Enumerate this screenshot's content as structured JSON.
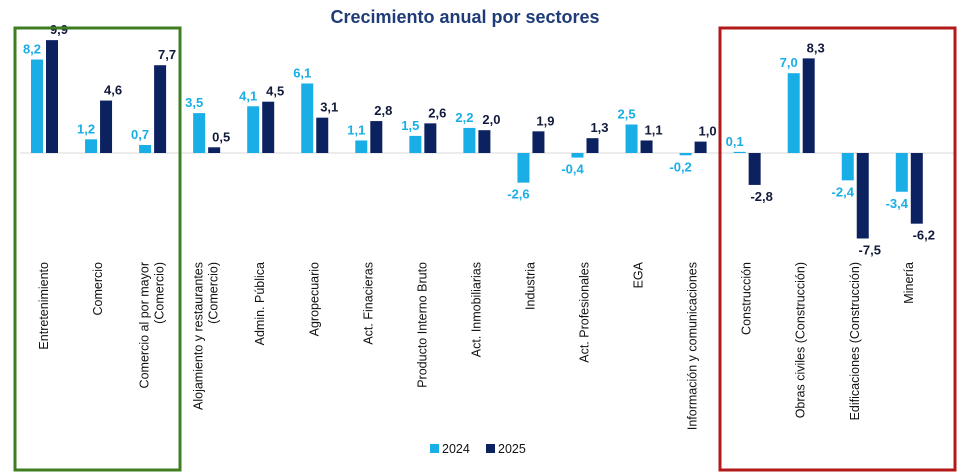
{
  "chart_data": {
    "type": "bar",
    "title": "Crecimiento anual por sectores",
    "categories": [
      [
        "Entretenimiento"
      ],
      [
        "Comercio"
      ],
      [
        "Comercio  al por mayor",
        "(Comercio)"
      ],
      [
        "Alojamiento y restaurantes",
        "(Comercio)"
      ],
      [
        "Admin. Pública"
      ],
      [
        "Agropecuario"
      ],
      [
        "Act. Finacieras"
      ],
      [
        "Producto Interno Bruto"
      ],
      [
        "Act. Inmobiliarias"
      ],
      [
        "Industria"
      ],
      [
        "Act. Profesionales"
      ],
      [
        "EGA"
      ],
      [
        "Información y comunicaciones"
      ],
      [
        "Construcción"
      ],
      [
        "Obras civiles (Construcción)"
      ],
      [
        "Edificaciones (Construcción)"
      ],
      [
        "Minería"
      ]
    ],
    "series": [
      {
        "name": "2024",
        "color": "#19aee6",
        "values": [
          8.2,
          1.2,
          0.7,
          3.5,
          4.1,
          6.1,
          1.1,
          1.5,
          2.2,
          -2.6,
          -0.4,
          2.5,
          -0.2,
          0.1,
          7.0,
          -2.4,
          -3.4
        ],
        "labels": [
          "8,2",
          "1,2",
          "0,7",
          "3,5",
          "4,1",
          "6,1",
          "1,1",
          "1,5",
          "2,2",
          "-2,6",
          "-0,4",
          "2,5",
          "-0,2",
          "0,1",
          "7,0",
          "-2,4",
          "-3,4"
        ]
      },
      {
        "name": "2025",
        "color": "#0c2160",
        "values": [
          9.9,
          4.6,
          7.7,
          0.5,
          4.5,
          3.1,
          2.8,
          2.6,
          2.0,
          1.9,
          1.3,
          1.1,
          1.0,
          -2.8,
          8.3,
          -7.5,
          -6.2
        ],
        "labels": [
          "9,9",
          "4,6",
          "7,7",
          "0,5",
          "4,5",
          "3,1",
          "2,8",
          "2,6",
          "2,0",
          "1,9",
          "1,3",
          "1,1",
          "1,0",
          "-2,8",
          "8,3",
          "-7,5",
          "-6,2"
        ]
      }
    ],
    "legend_position": "bottom",
    "grid": false,
    "highlight_groups": [
      {
        "color": "#3f7d23",
        "categories": [
          "Entretenimiento",
          "Comercio",
          "Comercio  al por mayor (Comercio)"
        ]
      },
      {
        "color": "#b21a1a",
        "categories": [
          "Construcción",
          "Obras civiles (Construcción)",
          "Edificaciones (Construcción)",
          "Minería"
        ]
      }
    ]
  }
}
